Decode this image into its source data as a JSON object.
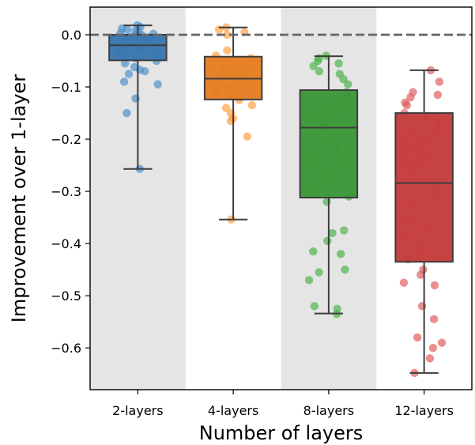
{
  "chart_data": {
    "type": "box",
    "title": "",
    "xlabel": "Number of layers",
    "ylabel": "Improvement over 1-layer",
    "ylim": [
      -0.68,
      0.053
    ],
    "yticks": [
      0.0,
      -0.1,
      -0.2,
      -0.3,
      -0.4,
      -0.5,
      -0.6
    ],
    "ytick_labels": [
      "0.0",
      "−0.1",
      "−0.2",
      "−0.3",
      "−0.4",
      "−0.5",
      "−0.6"
    ],
    "reference_line": {
      "y": 0.0,
      "style": "dashed",
      "color": "#666666"
    },
    "background_bands": "alternating gray on 2-layers and 8-layers",
    "grid": false,
    "categories": [
      "2-layers",
      "4-layers",
      "8-layers",
      "12-layers"
    ],
    "colors": [
      "#3a76af",
      "#e57e23",
      "#3b9838",
      "#c43d3c"
    ],
    "point_colors": [
      "#4a8fcb",
      "#ff9f40",
      "#4db34a",
      "#e05a5b"
    ],
    "band_color": "#e5e5e5",
    "boxes": [
      {
        "category": "2-layers",
        "whisker_low": -0.257,
        "q1": -0.049,
        "median": -0.02,
        "q3": 0.0,
        "whisker_high": 0.018
      },
      {
        "category": "4-layers",
        "whisker_low": -0.354,
        "q1": -0.124,
        "median": -0.084,
        "q3": -0.042,
        "whisker_high": 0.014
      },
      {
        "category": "8-layers",
        "whisker_low": -0.534,
        "q1": -0.312,
        "median": -0.178,
        "q3": -0.106,
        "whisker_high": -0.041
      },
      {
        "category": "12-layers",
        "whisker_low": -0.648,
        "q1": -0.435,
        "median": -0.284,
        "q3": -0.15,
        "whisker_high": -0.068
      }
    ],
    "points": [
      [
        0.018,
        0.015,
        0.012,
        0.01,
        0.008,
        0.005,
        0.003,
        0.002,
        0.0,
        -0.002,
        -0.005,
        -0.008,
        -0.01,
        -0.012,
        -0.015,
        -0.018,
        -0.02,
        -0.022,
        -0.025,
        -0.028,
        -0.03,
        -0.033,
        -0.035,
        -0.038,
        -0.04,
        -0.045,
        -0.05,
        -0.055,
        -0.062,
        -0.067,
        -0.07,
        -0.075,
        -0.09,
        -0.095,
        -0.122,
        -0.15,
        -0.257
      ],
      [
        0.014,
        0.01,
        0.005,
        0.0,
        -0.03,
        -0.04,
        -0.045,
        -0.05,
        -0.055,
        -0.06,
        -0.065,
        -0.07,
        -0.075,
        -0.08,
        -0.085,
        -0.09,
        -0.095,
        -0.1,
        -0.105,
        -0.11,
        -0.115,
        -0.12,
        -0.125,
        -0.135,
        -0.14,
        -0.15,
        -0.16,
        -0.165,
        -0.195,
        -0.354
      ],
      [
        -0.04,
        -0.045,
        -0.05,
        -0.055,
        -0.06,
        -0.07,
        -0.075,
        -0.085,
        -0.095,
        -0.11,
        -0.12,
        -0.13,
        -0.14,
        -0.15,
        -0.16,
        -0.17,
        -0.18,
        -0.19,
        -0.2,
        -0.21,
        -0.22,
        -0.23,
        -0.24,
        -0.25,
        -0.26,
        -0.27,
        -0.28,
        -0.3,
        -0.31,
        -0.32,
        -0.375,
        -0.38,
        -0.395,
        -0.415,
        -0.42,
        -0.45,
        -0.455,
        -0.47,
        -0.52,
        -0.525,
        -0.535
      ],
      [
        -0.068,
        -0.09,
        -0.11,
        -0.115,
        -0.12,
        -0.13,
        -0.135,
        -0.15,
        -0.16,
        -0.17,
        -0.18,
        -0.19,
        -0.2,
        -0.21,
        -0.22,
        -0.23,
        -0.24,
        -0.25,
        -0.26,
        -0.28,
        -0.3,
        -0.32,
        -0.35,
        -0.355,
        -0.37,
        -0.39,
        -0.41,
        -0.43,
        -0.45,
        -0.46,
        -0.475,
        -0.48,
        -0.52,
        -0.545,
        -0.58,
        -0.59,
        -0.6,
        -0.62,
        -0.648
      ]
    ]
  }
}
